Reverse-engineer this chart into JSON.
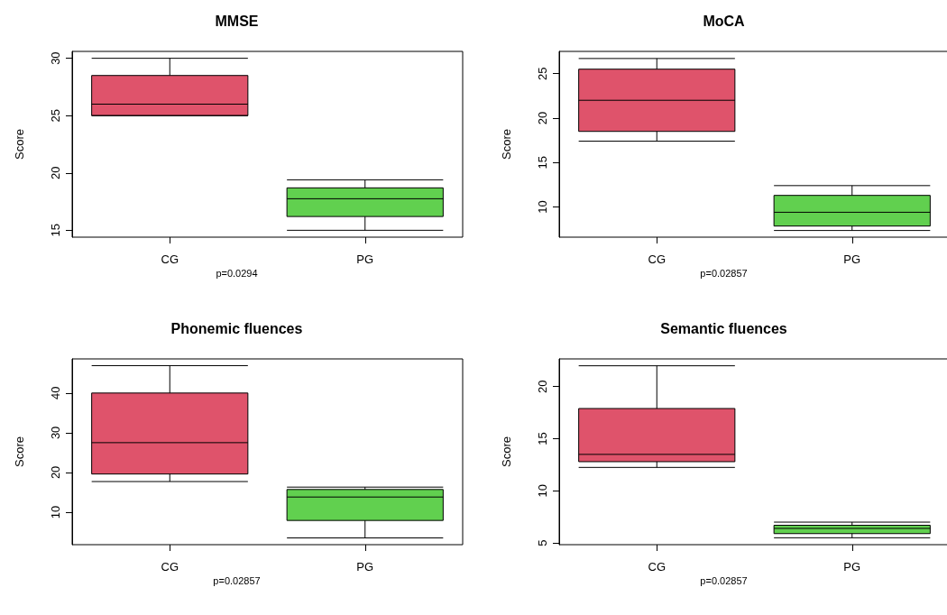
{
  "chart_data": [
    {
      "type": "box",
      "title": "MMSE",
      "ylabel": "Score",
      "categories": [
        "CG",
        "PG"
      ],
      "colors": [
        "#df536b",
        "#61d04f"
      ],
      "boxes": [
        {
          "low": 25,
          "q1": 25,
          "median": 26,
          "q3": 28.5,
          "high": 30
        },
        {
          "low": 15,
          "q1": 16.2,
          "median": 17.75,
          "q3": 18.7,
          "high": 19.4
        }
      ],
      "ylim": [
        14.4,
        30.6
      ],
      "yticks": [
        15,
        20,
        25,
        30
      ],
      "annotations": [
        "p=0.0294"
      ]
    },
    {
      "type": "box",
      "title": "MoCA",
      "ylabel": "Score",
      "categories": [
        "CG",
        "PG"
      ],
      "colors": [
        "#df536b",
        "#61d04f"
      ],
      "boxes": [
        {
          "low": 17.4,
          "q1": 18.5,
          "median": 22,
          "q3": 25.5,
          "high": 26.7
        },
        {
          "low": 7.35,
          "q1": 7.85,
          "median": 9.4,
          "q3": 11.3,
          "high": 12.4
        }
      ],
      "ylim": [
        6.6,
        27.5
      ],
      "yticks": [
        10,
        15,
        20,
        25
      ],
      "annotations": [
        "p=0.02857"
      ]
    },
    {
      "type": "box",
      "title": "Phonemic fluences",
      "ylabel": "Score",
      "categories": [
        "CG",
        "PG"
      ],
      "colors": [
        "#df536b",
        "#61d04f"
      ],
      "boxes": [
        {
          "low": 17.7,
          "q1": 19.6,
          "median": 27.5,
          "q3": 40,
          "high": 46.9
        },
        {
          "low": 3.5,
          "q1": 7.9,
          "median": 13.8,
          "q3": 15.7,
          "high": 16.3
        }
      ],
      "ylim": [
        1.8,
        48.6
      ],
      "yticks": [
        10,
        20,
        30,
        40
      ],
      "annotations": [
        "p=0.02857"
      ]
    },
    {
      "type": "box",
      "title": "Semantic fluences",
      "ylabel": "Score",
      "categories": [
        "CG",
        "PG"
      ],
      "colors": [
        "#df536b",
        "#61d04f"
      ],
      "boxes": [
        {
          "low": 12.25,
          "q1": 12.8,
          "median": 13.5,
          "q3": 17.9,
          "high": 22
        },
        {
          "low": 5.5,
          "q1": 5.9,
          "median": 6.4,
          "q3": 6.7,
          "high": 7
        }
      ],
      "ylim": [
        4.84,
        22.66
      ],
      "yticks": [
        5,
        10,
        15,
        20
      ],
      "annotations": [
        "p=0.02857"
      ]
    }
  ]
}
